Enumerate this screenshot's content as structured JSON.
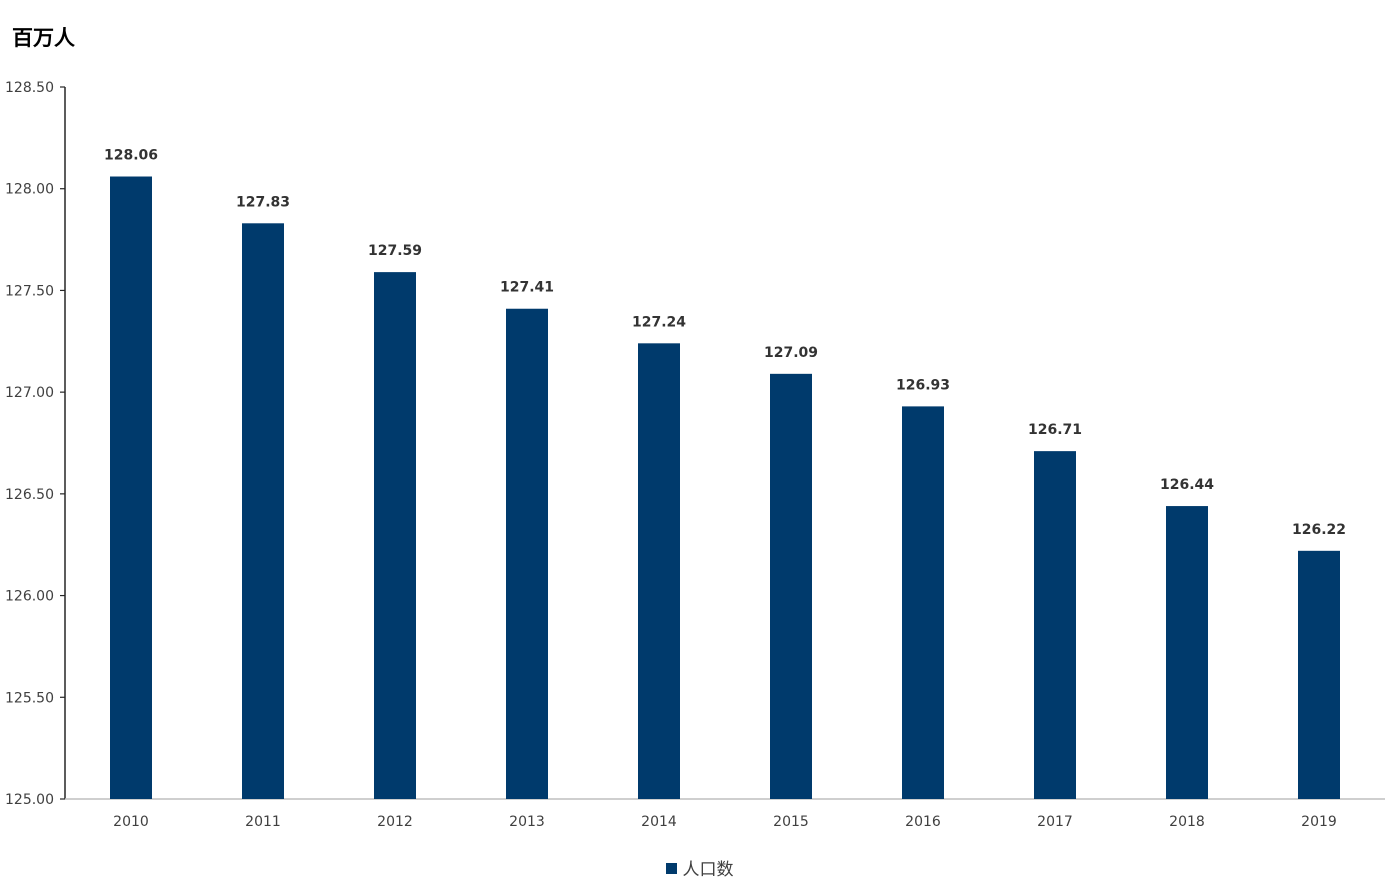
{
  "unit_label": "百万人",
  "colors": {
    "bar": "#003a6c",
    "axis": "#262626",
    "baseline": "#bfbfbf"
  },
  "chart_data": {
    "type": "bar",
    "categories": [
      "2010",
      "2011",
      "2012",
      "2013",
      "2014",
      "2015",
      "2016",
      "2017",
      "2018",
      "2019"
    ],
    "series": [
      {
        "name": "人口数",
        "values": [
          128.06,
          127.83,
          127.59,
          127.41,
          127.24,
          127.09,
          126.93,
          126.71,
          126.44,
          126.22
        ]
      }
    ],
    "data_labels": [
      "128.06",
      "127.83",
      "127.59",
      "127.41",
      "127.24",
      "127.09",
      "126.93",
      "126.71",
      "126.44",
      "126.22"
    ],
    "y_ticks": [
      "125.00",
      "125.50",
      "126.00",
      "126.50",
      "127.00",
      "127.50",
      "128.00",
      "128.50"
    ],
    "title": "",
    "xlabel": "",
    "ylabel": "百万人",
    "ylim": [
      125.0,
      128.5
    ],
    "grid": false,
    "legend_position": "bottom-center"
  }
}
